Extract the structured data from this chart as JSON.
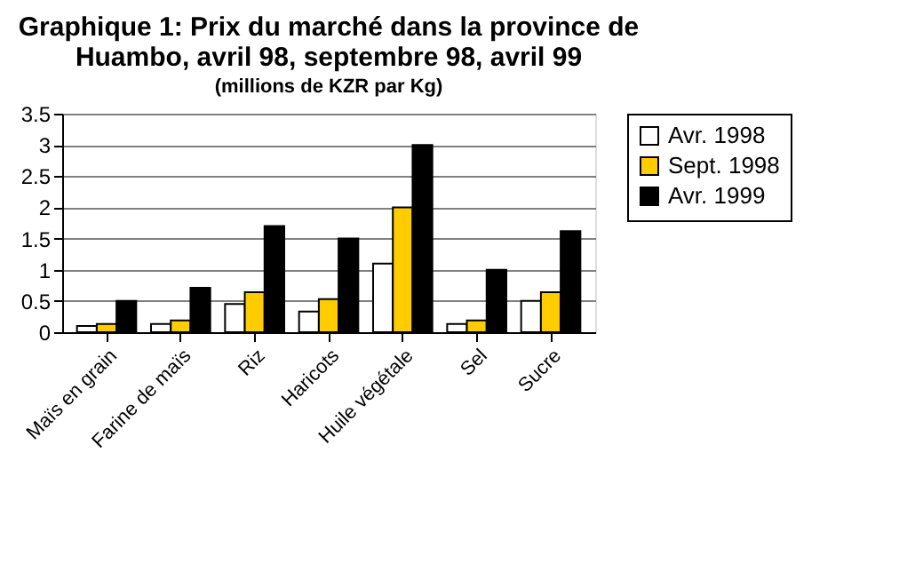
{
  "chart_data": {
    "type": "bar",
    "title": [
      "Graphique 1: Prix du marché dans la province de",
      "Huambo, avril 98, septembre 98, avril 99"
    ],
    "subtitle": "(millions de KZR par Kg)",
    "categories": [
      "Maïs en grain",
      "Farine de maïs",
      "Riz",
      "Haricots",
      "Huile végétale",
      "Sel",
      "Sucre"
    ],
    "series": [
      {
        "name": "Avr. 1998",
        "color": "#ffffff",
        "values": [
          0.1,
          0.13,
          0.45,
          0.33,
          1.1,
          0.13,
          0.5
        ]
      },
      {
        "name": "Sept. 1998",
        "color": "#ffcc00",
        "values": [
          0.13,
          0.19,
          0.64,
          0.53,
          2.0,
          0.19,
          0.64
        ]
      },
      {
        "name": "Avr. 1999",
        "color": "#000000",
        "values": [
          0.5,
          0.71,
          1.7,
          1.5,
          3.0,
          1.0,
          1.62
        ]
      }
    ],
    "ylim": [
      0,
      3.5
    ],
    "yticks": [
      0,
      0.5,
      1,
      1.5,
      2,
      2.5,
      3,
      3.5
    ],
    "grid": "y",
    "legend": "right"
  }
}
